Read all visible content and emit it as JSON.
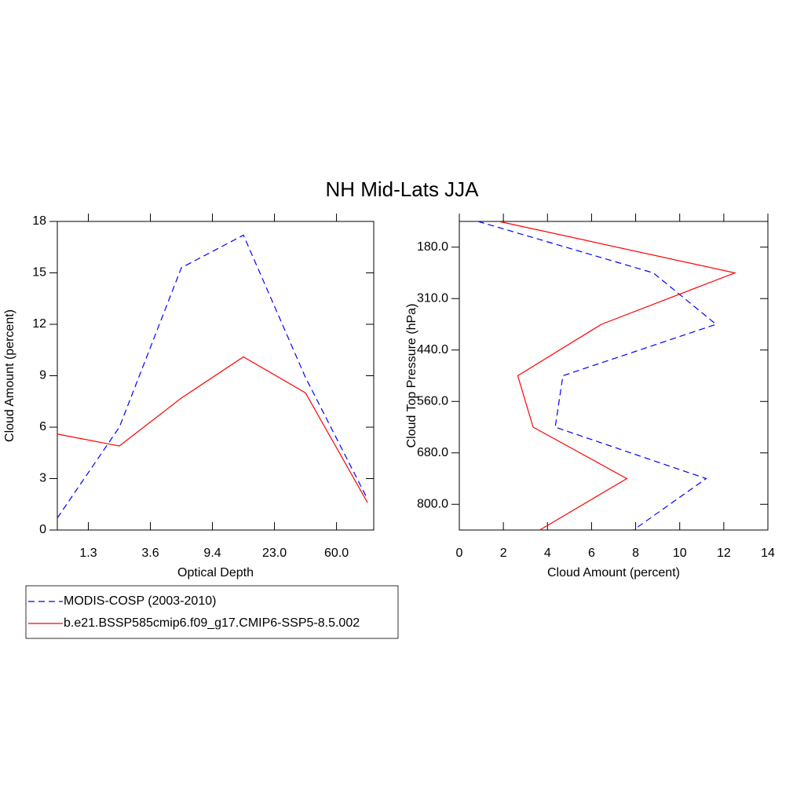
{
  "title": "NH Mid-Lats JJA",
  "chart_data": [
    {
      "type": "line",
      "orientation": "vertical",
      "xlabel": "Optical Depth",
      "ylabel": "Cloud Amount (percent)",
      "x": [
        0,
        1,
        2,
        3,
        4,
        5
      ],
      "xlim": [
        0,
        5.1
      ],
      "xticks": [
        {
          "value": 0.5,
          "label": "1.3"
        },
        {
          "value": 1.5,
          "label": "3.6"
        },
        {
          "value": 2.5,
          "label": "9.4"
        },
        {
          "value": 3.5,
          "label": "23.0"
        },
        {
          "value": 4.5,
          "label": "60.0"
        }
      ],
      "ylim": [
        0,
        18
      ],
      "yticks": [
        0,
        3,
        6,
        9,
        12,
        15,
        18
      ],
      "series": [
        {
          "name": "MODIS-COSP (2003-2010)",
          "color": "#0000ff",
          "dash": true,
          "values": [
            0.7,
            6.0,
            15.3,
            17.2,
            8.9,
            1.8
          ]
        },
        {
          "name": "b.e21.BSSP585cmip6.f09_g17.CMIP6-SSP5-8.5.002",
          "color": "#ff0000",
          "dash": false,
          "values": [
            5.6,
            4.9,
            7.7,
            10.1,
            8.0,
            1.6
          ]
        }
      ]
    },
    {
      "type": "line",
      "orientation": "horizontal",
      "xlabel": "Cloud Amount (percent)",
      "ylabel": "Cloud Top Pressure (hPa)",
      "y": [
        0,
        1,
        2,
        3,
        4,
        5,
        6
      ],
      "ylim": [
        0,
        6
      ],
      "yticks": [
        {
          "value": 0.5,
          "label": "180.0"
        },
        {
          "value": 1.5,
          "label": "310.0"
        },
        {
          "value": 2.5,
          "label": "440.0"
        },
        {
          "value": 3.5,
          "label": "560.0"
        },
        {
          "value": 4.5,
          "label": "680.0"
        },
        {
          "value": 5.5,
          "label": "800.0"
        }
      ],
      "xlim": [
        0,
        14
      ],
      "xticks": [
        0,
        2,
        4,
        6,
        8,
        10,
        12,
        14
      ],
      "series": [
        {
          "name": "MODIS-COSP (2003-2010)",
          "color": "#0000ff",
          "dash": true,
          "values": [
            0.85,
            8.8,
            11.65,
            4.7,
            4.35,
            11.2,
            7.9
          ]
        },
        {
          "name": "b.e21.BSSP585cmip6.f09_g17.CMIP6-SSP5-8.5.002",
          "color": "#ff0000",
          "dash": false,
          "values": [
            1.8,
            12.5,
            6.45,
            2.65,
            3.35,
            7.6,
            3.65
          ]
        }
      ]
    }
  ]
}
